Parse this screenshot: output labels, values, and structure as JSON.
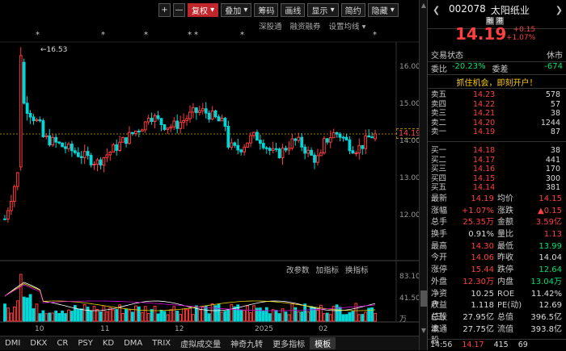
{
  "toolbar": {
    "plus": "+",
    "minus": "—",
    "adjust": "复权",
    "overlay": "叠加",
    "chips": "筹码",
    "draw": "画线",
    "display": "显示",
    "simple": "简约",
    "hide": "隐藏"
  },
  "subtools": [
    "深股通",
    "融资融券",
    "设置均线"
  ],
  "indicator_tools": [
    "改参数",
    "加指标",
    "换指标"
  ],
  "chart": {
    "peak_label": "16.53",
    "current_price_label": "14.19",
    "price_ticks": [
      "16.00",
      "15.00",
      "14.00",
      "13.00",
      "12.00"
    ],
    "volume_ticks": [
      "83.10",
      "41.50",
      "万"
    ],
    "x_labels": [
      "10",
      "11",
      "12",
      "2025",
      "02"
    ],
    "stars": [
      "*",
      "*",
      "*",
      "*",
      "*",
      "*",
      "*"
    ],
    "colors": {
      "up": "#ff3b3b",
      "down": "#00d8d8",
      "ma5": "#ffffff",
      "ma10": "#e8d000",
      "ma20": "#d000d0"
    }
  },
  "bottom_tabs": [
    "DMI",
    "DKX",
    "CR",
    "PSY",
    "KD",
    "DMA",
    "TRIX",
    "虚拟成交量",
    "神奇九转",
    "更多指标",
    "模板"
  ],
  "quote": {
    "code": "002078",
    "name": "太阳纸业",
    "badge1": "融",
    "badge2": "港",
    "price": "14.19",
    "change": "+0.15",
    "change_pct": "+1.07%",
    "trade_state_label": "交易状态",
    "trade_state_value": "休市",
    "ratio_label": "委比",
    "ratio_value": "-20.23%",
    "diff_label": "委差",
    "diff_value": "-674",
    "ad": "抓住机会，即刻开户！"
  },
  "asks": [
    {
      "label": "卖五",
      "price": "14.23",
      "vol": "578"
    },
    {
      "label": "卖四",
      "price": "14.22",
      "vol": "57"
    },
    {
      "label": "卖三",
      "price": "14.21",
      "vol": "38"
    },
    {
      "label": "卖二",
      "price": "14.20",
      "vol": "1244"
    },
    {
      "label": "卖一",
      "price": "14.19",
      "vol": "87"
    }
  ],
  "bids": [
    {
      "label": "买一",
      "price": "14.18",
      "vol": "38"
    },
    {
      "label": "买二",
      "price": "14.17",
      "vol": "441"
    },
    {
      "label": "买三",
      "price": "14.16",
      "vol": "170"
    },
    {
      "label": "买四",
      "price": "14.15",
      "vol": "300"
    },
    {
      "label": "买五",
      "price": "14.14",
      "vol": "381"
    }
  ],
  "stats": [
    {
      "k1": "最新",
      "v1": "14.19",
      "k2": "均价",
      "v2": "14.15"
    },
    {
      "k1": "涨幅",
      "v1": "+1.07%",
      "k2": "涨跌",
      "v2": "▲0.15"
    },
    {
      "k1": "总手",
      "v1": "25.35万",
      "k2": "金额",
      "v2": "3.59亿"
    },
    {
      "k1": "换手",
      "v1": "0.91%",
      "k2": "量比",
      "v2": "1.13"
    },
    {
      "k1": "最高",
      "v1": "14.30",
      "k2": "最低",
      "v2": "13.99"
    },
    {
      "k1": "今开",
      "v1": "14.06",
      "k2": "昨收",
      "v2": "14.04"
    },
    {
      "k1": "涨停",
      "v1": "15.44",
      "k2": "跌停",
      "v2": "12.64"
    },
    {
      "k1": "外盘",
      "v1": "12.30万",
      "k2": "内盘",
      "v2": "13.04万"
    },
    {
      "k1": "净资产",
      "v1": "10.25",
      "k2": "ROE",
      "v2": "11.42%"
    },
    {
      "k1": "收益(三)",
      "v1": "1.118",
      "k2": "PE(动)",
      "v2": "12.69"
    },
    {
      "k1": "总股本",
      "v1": "27.95亿",
      "k2": "总值",
      "v2": "396.5亿"
    },
    {
      "k1": "流通股",
      "v1": "27.75亿",
      "k2": "流值",
      "v2": "393.8亿"
    }
  ],
  "tick": {
    "time": "14:56",
    "price": "14.17",
    "vol": "415",
    "count": "69"
  }
}
